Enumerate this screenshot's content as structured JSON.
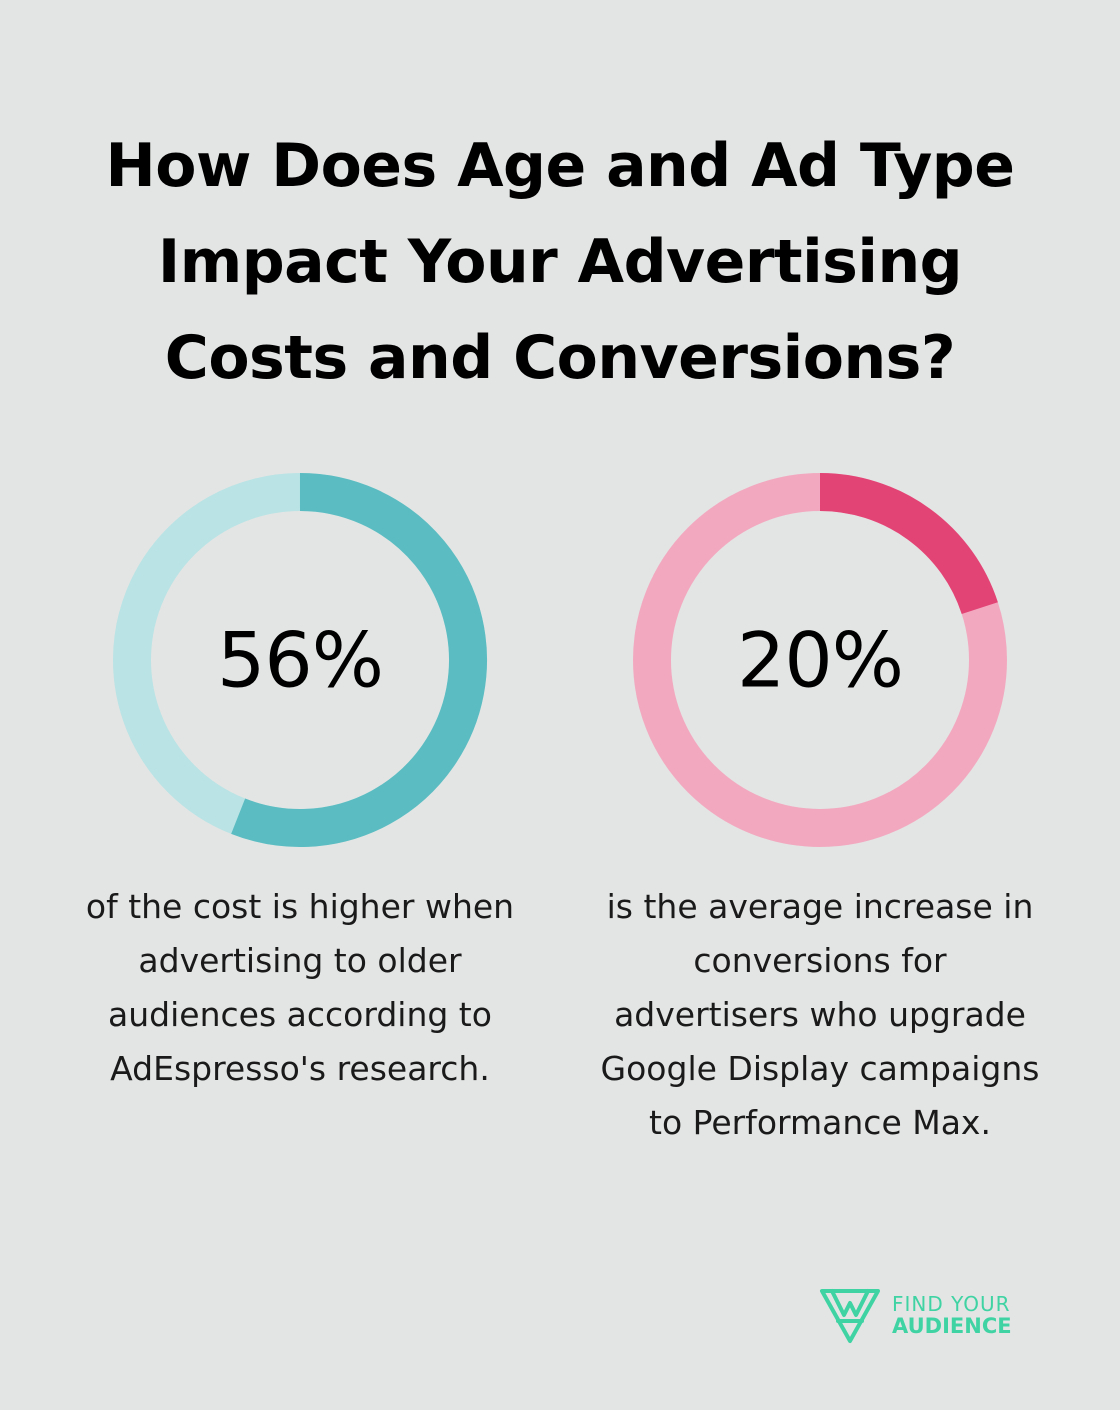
{
  "title": {
    "lines": [
      "How Does Age and Ad Type",
      "Impact Your Advertising",
      "Costs and Conversions?"
    ]
  },
  "chart_data": [
    {
      "type": "pie",
      "variant": "donut",
      "value_percent": 56,
      "label": "56%",
      "caption_lines": [
        "of the cost is higher when",
        "advertising to older",
        "audiences according to",
        "AdEspresso's research."
      ],
      "colors": {
        "filled": "#5bbcc1",
        "track": "#b9e3e5"
      }
    },
    {
      "type": "pie",
      "variant": "donut",
      "value_percent": 20,
      "label": "20%",
      "caption_lines": [
        "is the average increase in",
        "conversions for",
        "advertisers who upgrade",
        "Google Display campaigns",
        "to Performance Max."
      ],
      "colors": {
        "filled": "#e34476",
        "track": "#f2a9c0"
      }
    }
  ],
  "brand": {
    "line1": "FIND YOUR",
    "line2": "AUDIENCE",
    "logo_icon": "triangle-logo-icon",
    "color": "#3fd3a3"
  },
  "colors": {
    "background": "#e3e5e4",
    "text": "#000000"
  }
}
